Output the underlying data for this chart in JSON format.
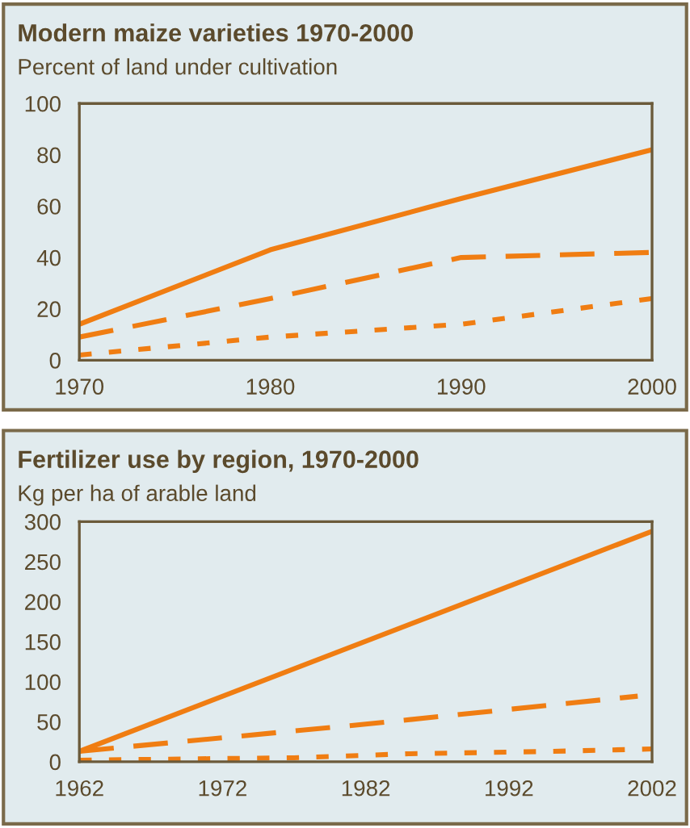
{
  "chart_data": [
    {
      "type": "line",
      "title": "Modern maize varieties 1970-2000",
      "subtitle": "Percent of land under cultivation",
      "x": [
        1970,
        1980,
        1990,
        2000
      ],
      "xlim": [
        1970,
        2000
      ],
      "xticks": [
        1970,
        1980,
        1990,
        2000
      ],
      "ylim": [
        0,
        100
      ],
      "yticks": [
        0,
        20,
        40,
        60,
        80,
        100
      ],
      "grid": false,
      "legend": false,
      "series": [
        {
          "color": "#f07d12",
          "line_style": "solid",
          "values": [
            14,
            43,
            63,
            82
          ]
        },
        {
          "color": "#f07d12",
          "line_style": "dashed",
          "values": [
            9,
            24,
            40,
            42
          ]
        },
        {
          "color": "#f07d12",
          "line_style": "dotted",
          "values": [
            2,
            9,
            14,
            24
          ]
        }
      ]
    },
    {
      "type": "line",
      "title": "Fertilizer use by region, 1970-2000",
      "subtitle": "Kg per ha of arable land",
      "xlim": [
        1962,
        2002
      ],
      "xticks": [
        1962,
        1972,
        1982,
        1992,
        2002
      ],
      "ylim": [
        0,
        300
      ],
      "yticks": [
        0,
        50,
        100,
        150,
        200,
        250,
        300
      ],
      "grid": false,
      "legend": false,
      "series": [
        {
          "color": "#f07d12",
          "line_style": "solid",
          "x": [
            1962,
            2002
          ],
          "values": [
            13,
            288
          ]
        },
        {
          "color": "#f07d12",
          "line_style": "dashed",
          "x": [
            1962,
            1982,
            2001
          ],
          "values": [
            13,
            47,
            82
          ]
        },
        {
          "color": "#f07d12",
          "line_style": "dotted",
          "x": [
            1962,
            1977,
            1985,
            1995,
            2002
          ],
          "values": [
            2,
            5,
            10,
            13,
            16
          ]
        }
      ]
    }
  ]
}
